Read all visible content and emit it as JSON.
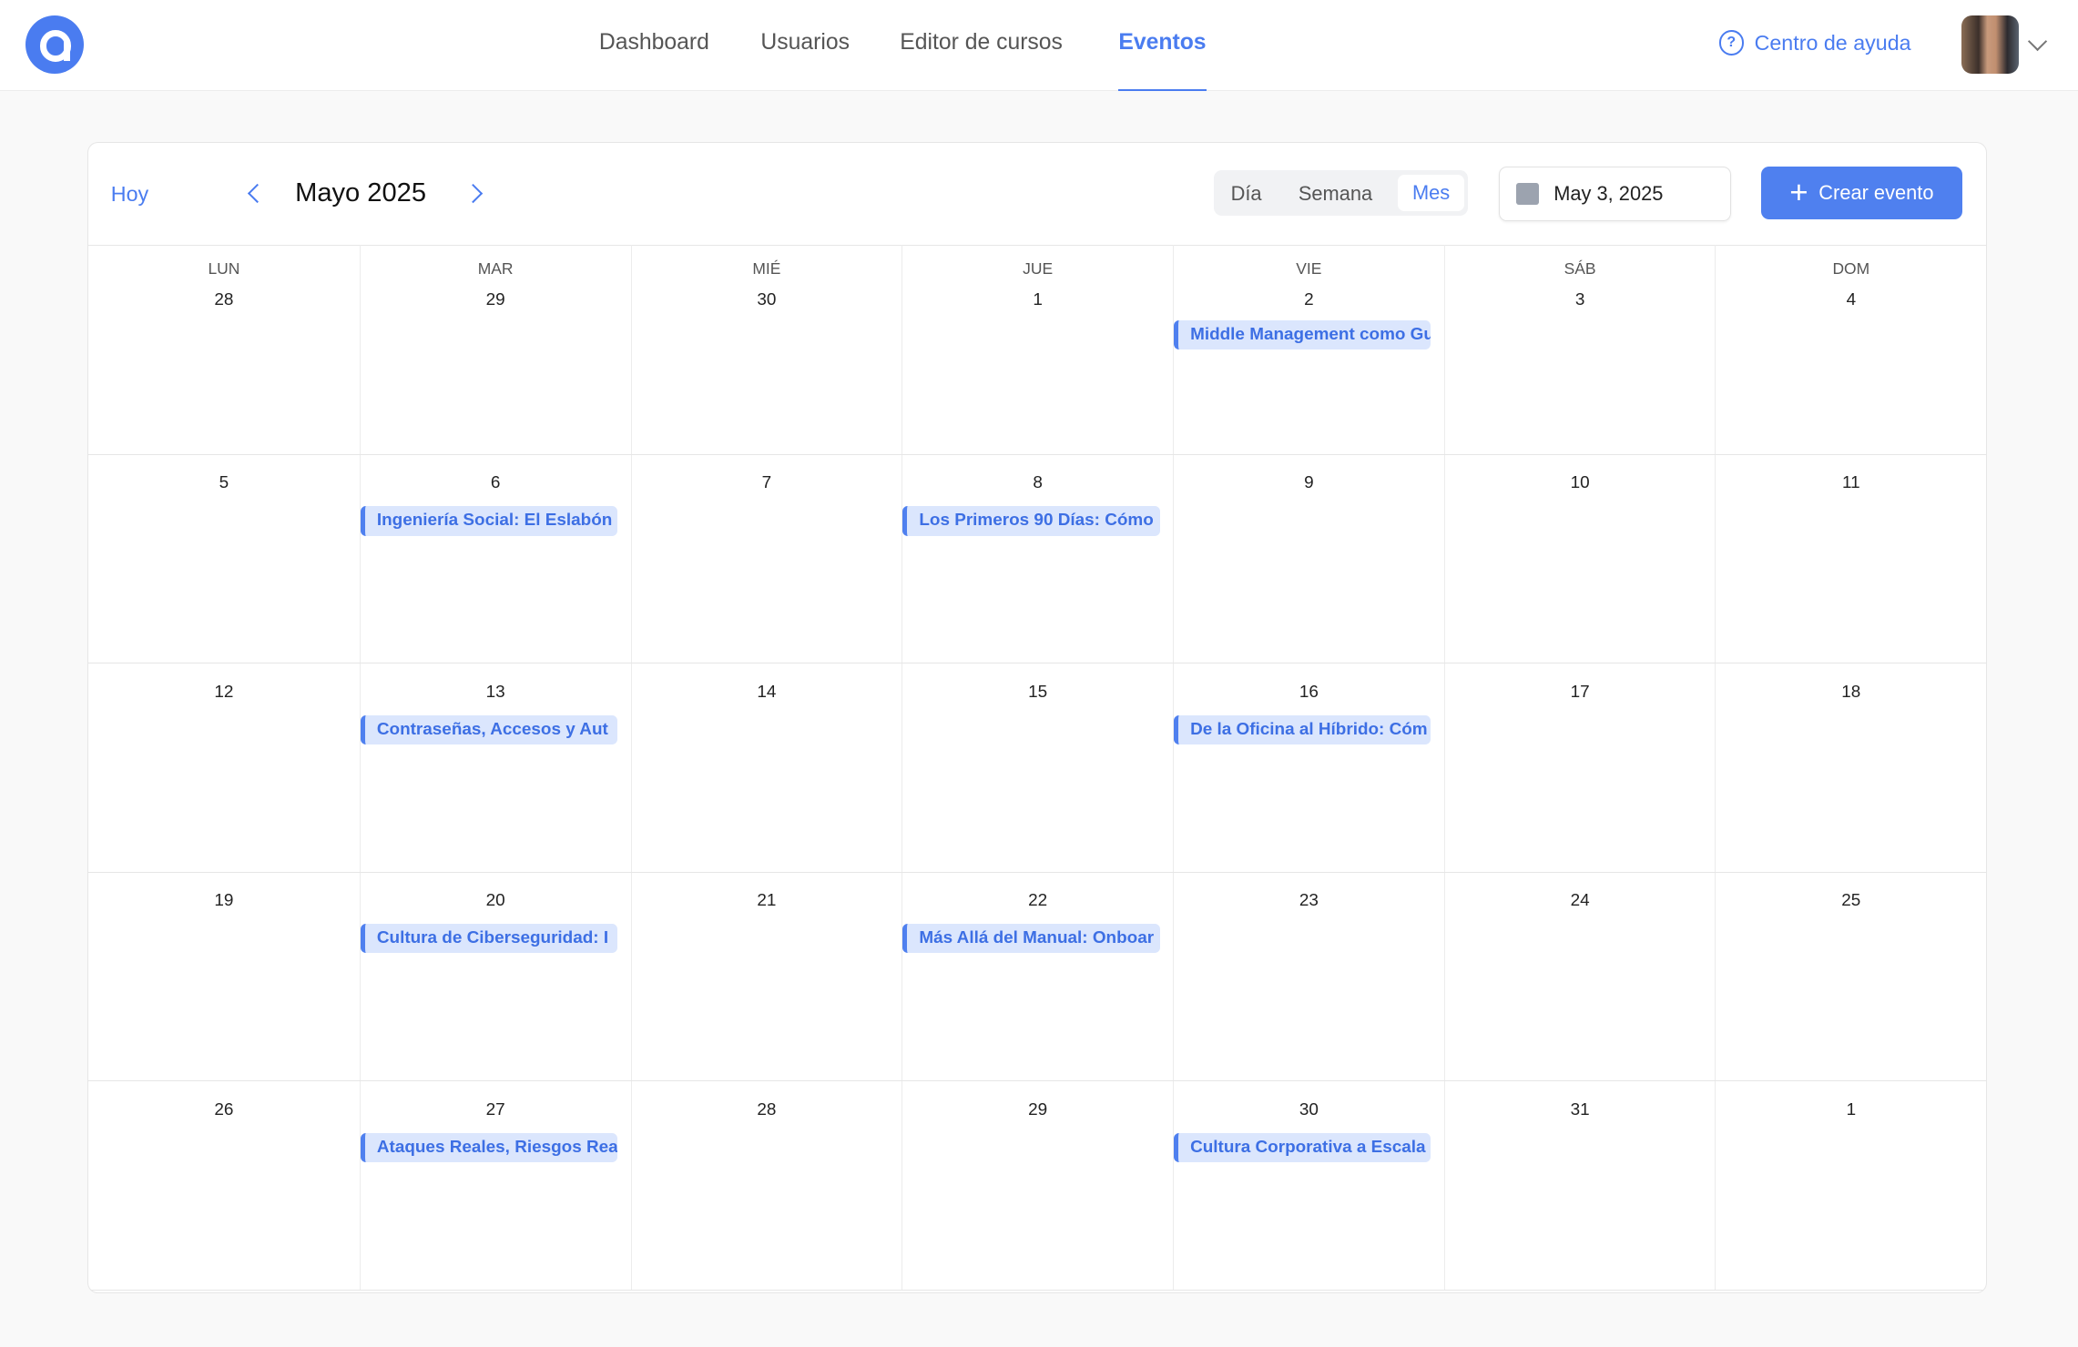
{
  "nav": {
    "items": [
      "Dashboard",
      "Usuarios",
      "Editor de cursos",
      "Eventos"
    ],
    "active": "Eventos",
    "help": "Centro de ayuda"
  },
  "toolbar": {
    "today": "Hoy",
    "month": "Mayo 2025",
    "views": [
      "Día",
      "Semana",
      "Mes"
    ],
    "active_view": "Mes",
    "date": "May 3, 2025",
    "create": "Crear evento"
  },
  "weekdays": [
    "LUN",
    "MAR",
    "MIÉ",
    "JUE",
    "VIE",
    "SÁB",
    "DOM"
  ],
  "weeks": [
    [
      {
        "d": "28"
      },
      {
        "d": "29"
      },
      {
        "d": "30"
      },
      {
        "d": "1"
      },
      {
        "d": "2",
        "ev": "Middle Management como Guía"
      },
      {
        "d": "3"
      },
      {
        "d": "4"
      }
    ],
    [
      {
        "d": "5"
      },
      {
        "d": "6",
        "ev": "Ingeniería Social: El Eslabón"
      },
      {
        "d": "7"
      },
      {
        "d": "8",
        "ev": "Los Primeros 90 Días: Cómo"
      },
      {
        "d": "9"
      },
      {
        "d": "10"
      },
      {
        "d": "11"
      }
    ],
    [
      {
        "d": "12"
      },
      {
        "d": "13",
        "ev": "Contraseñas, Accesos y Aut"
      },
      {
        "d": "14"
      },
      {
        "d": "15"
      },
      {
        "d": "16",
        "ev": "De la Oficina al Híbrido: Cóm"
      },
      {
        "d": "17"
      },
      {
        "d": "18"
      }
    ],
    [
      {
        "d": "19"
      },
      {
        "d": "20",
        "ev": "Cultura de Ciberseguridad: I"
      },
      {
        "d": "21"
      },
      {
        "d": "22",
        "ev": "Más Allá del Manual: Onboar"
      },
      {
        "d": "23"
      },
      {
        "d": "24"
      },
      {
        "d": "25"
      }
    ],
    [
      {
        "d": "26"
      },
      {
        "d": "27",
        "ev": "Ataques Reales, Riesgos Rea"
      },
      {
        "d": "28"
      },
      {
        "d": "29"
      },
      {
        "d": "30",
        "ev": "Cultura Corporativa a Escala"
      },
      {
        "d": "31"
      },
      {
        "d": "1"
      }
    ]
  ],
  "colors": {
    "accent": "#4a7cf0",
    "event_bg": "#dbe6fd"
  }
}
